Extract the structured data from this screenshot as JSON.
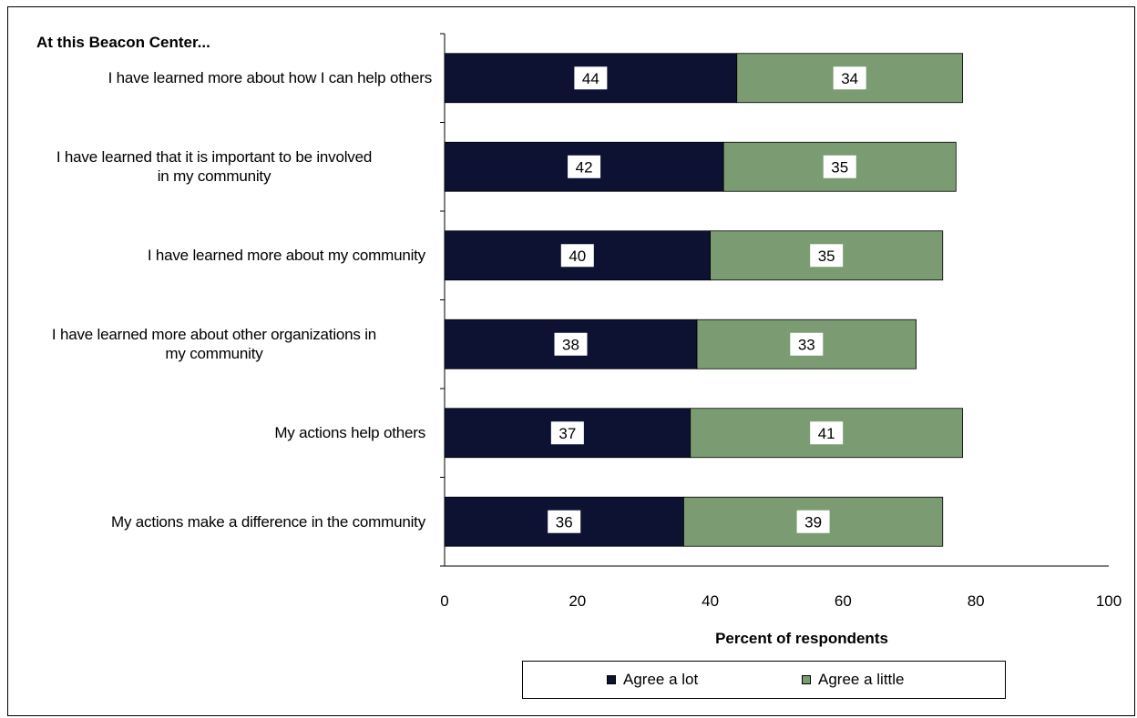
{
  "chart_data": {
    "type": "bar",
    "orientation": "horizontal",
    "stacked": true,
    "title": "At this Beacon Center...",
    "xlabel": "Percent of respondents",
    "ylabel": "",
    "xlim": [
      0,
      100
    ],
    "xticks": [
      "0",
      "20",
      "40",
      "60",
      "80",
      "100"
    ],
    "grid": false,
    "legend_position": "bottom",
    "categories": [
      "I have learned more about how I can help others",
      "I have learned that it is important to be involved in my community",
      "I have learned more about my community",
      "I have learned more about other organizations in my community",
      "My actions help others",
      "My actions make a difference in the community"
    ],
    "category_lines": [
      [
        "I have learned more about how I can help others"
      ],
      [
        "I have learned that it is important to be involved",
        "in my community"
      ],
      [
        "I have learned more about my community"
      ],
      [
        "I have learned more about other organizations in",
        "my community"
      ],
      [
        "My actions help others"
      ],
      [
        "My actions make a difference in the community"
      ]
    ],
    "series": [
      {
        "name": "Agree a lot",
        "color": "#0d1233",
        "values": [
          44,
          42,
          40,
          38,
          37,
          36
        ]
      },
      {
        "name": "Agree a little",
        "color": "#7b9c72",
        "values": [
          34,
          35,
          35,
          33,
          41,
          39
        ]
      }
    ]
  }
}
